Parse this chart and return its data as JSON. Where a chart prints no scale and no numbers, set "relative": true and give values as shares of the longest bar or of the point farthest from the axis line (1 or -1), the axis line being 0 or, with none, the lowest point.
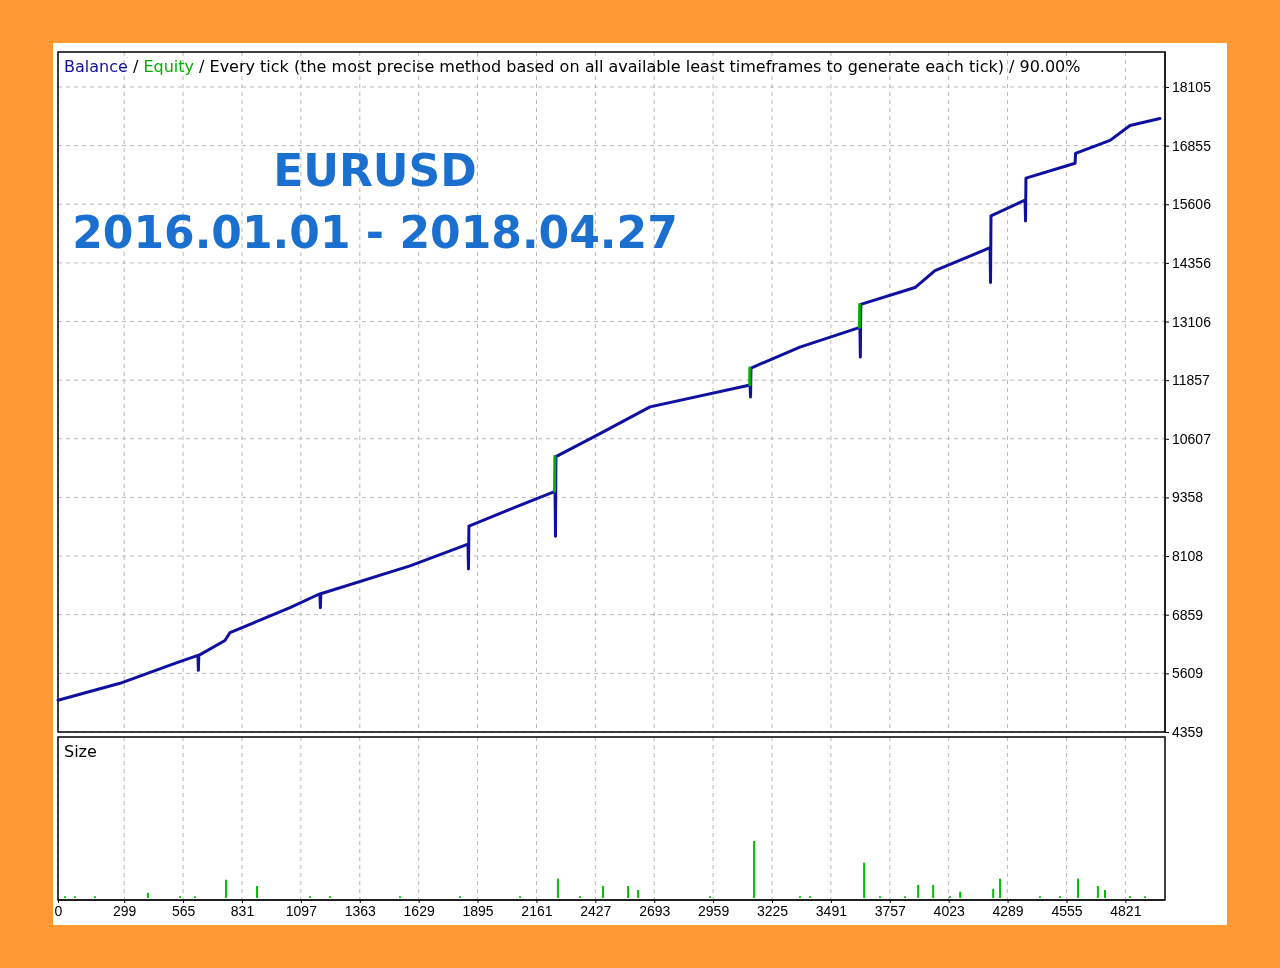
{
  "chart_data": [
    {
      "type": "line",
      "title": "/ Every tick (the most precise method based on all available least timeframes to generate each tick) / 90.00%",
      "annotations": [
        "/",
        "EURUSD",
        "2016.01.01 - 2018.04.27"
      ],
      "legend": "top left",
      "grid": true,
      "tick_labels": "y",
      "line_style": "solid",
      "marker": "none",
      "xlim": [
        0,
        5000
      ],
      "ylim": [
        4359,
        18850
      ],
      "yticks": [
        4359,
        5609,
        6859,
        8108,
        9358,
        10607,
        11857,
        13106,
        14356,
        15606,
        16855,
        18105
      ],
      "series": [
        {
          "name": "Balance",
          "color": "#1010a0",
          "x": [
            0,
            280,
            528,
            632,
            634,
            636,
            754,
            777,
            1048,
            1183,
            1185,
            1187,
            1590,
            1852,
            1854,
            1856,
            2019,
            2245,
            2247,
            2249,
            2448,
            2674,
            3126,
            3128,
            3130,
            3351,
            3622,
            3624,
            3626,
            3871,
            3961,
            4210,
            4212,
            4214,
            4368,
            4370,
            4372,
            4594,
            4596,
            4752,
            4842,
            4977
          ],
          "values": [
            5037,
            5397,
            5821,
            5991,
            5673,
            5991,
            6308,
            6478,
            7008,
            7305,
            7008,
            7305,
            7898,
            8364,
            7834,
            8745,
            9063,
            9487,
            8533,
            10229,
            10716,
            11288,
            11754,
            11500,
            12115,
            12560,
            12983,
            12348,
            13471,
            13831,
            14191,
            14679,
            13937,
            15357,
            15696,
            15250,
            16162,
            16480,
            16691,
            16966,
            17285,
            17433
          ]
        },
        {
          "name": "Equity",
          "color": "#00b000",
          "x": [
            2243,
            2244,
            2245,
            3124,
            3125,
            3126,
            3620,
            3621
          ],
          "values": [
            9487,
            10229,
            null,
            11754,
            12115,
            null,
            12983,
            13471
          ]
        }
      ]
    },
    {
      "type": "bar",
      "title": "Size",
      "relative": true,
      "grid": "x",
      "tick_labels": "x",
      "color": "#00c000",
      "xlim": [
        0,
        5000
      ],
      "xticks": [
        0,
        299,
        565,
        831,
        1097,
        1363,
        1629,
        1895,
        2161,
        2427,
        2693,
        2959,
        3225,
        3491,
        3757,
        4023,
        4289,
        4555,
        4821
      ],
      "x": [
        32,
        77,
        167,
        406,
        551,
        619,
        759,
        899,
        1138,
        1229,
        1545,
        1816,
        2087,
        2258,
        2358,
        2462,
        2575,
        2620,
        2945,
        3144,
        3351,
        3397,
        3641,
        3713,
        3826,
        3885,
        3953,
        4029,
        4075,
        4224,
        4255,
        4435,
        4526,
        4607,
        4697,
        4729,
        4842,
        4910
      ],
      "values": [
        0.03,
        0.03,
        0.03,
        0.09,
        0.03,
        0.03,
        0.32,
        0.21,
        0.03,
        0.03,
        0.03,
        0.03,
        0.03,
        0.34,
        0.03,
        0.21,
        0.21,
        0.14,
        0.03,
        1,
        0.03,
        0.03,
        0.62,
        0.03,
        0.03,
        0.23,
        0.23,
        0.03,
        0.11,
        0.16,
        0.34,
        0.03,
        0.03,
        0.34,
        0.21,
        0.14,
        0.03,
        0.03
      ]
    }
  ]
}
